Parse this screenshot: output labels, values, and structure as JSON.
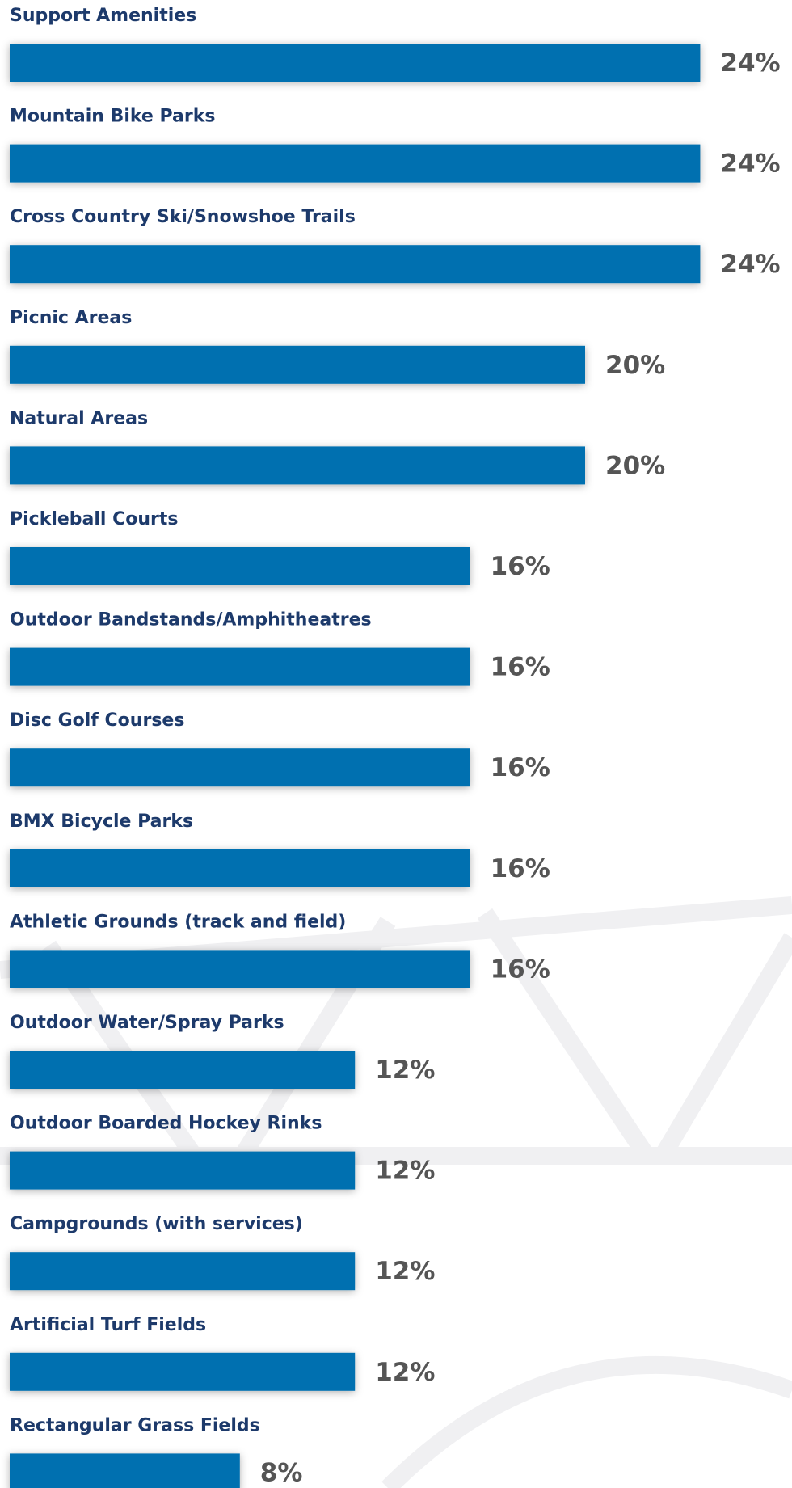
{
  "chart_data": {
    "type": "bar",
    "orientation": "horizontal",
    "color": "#0570b0",
    "categories": [
      "Support Amenities",
      "Mountain Bike Parks",
      "Cross Country Ski/Snowshoe Trails",
      "Picnic Areas",
      "Natural Areas",
      "Pickleball Courts",
      "Outdoor Bandstands/Amphitheatres",
      "Disc Golf Courses",
      "BMX Bicycle Parks",
      "Athletic Grounds (track and field)",
      "Outdoor Water/Spray Parks",
      "Outdoor Boarded Hockey Rinks",
      "Campgrounds (with services)",
      "Artificial Turf Fields",
      "Rectangular Grass Fields"
    ],
    "values": [
      24,
      24,
      24,
      20,
      20,
      16,
      16,
      16,
      16,
      16,
      12,
      12,
      12,
      12,
      8
    ],
    "value_labels": [
      "24%",
      "24%",
      "24%",
      "20%",
      "20%",
      "16%",
      "16%",
      "16%",
      "16%",
      "16%",
      "12%",
      "12%",
      "12%",
      "12%",
      "8%"
    ]
  }
}
